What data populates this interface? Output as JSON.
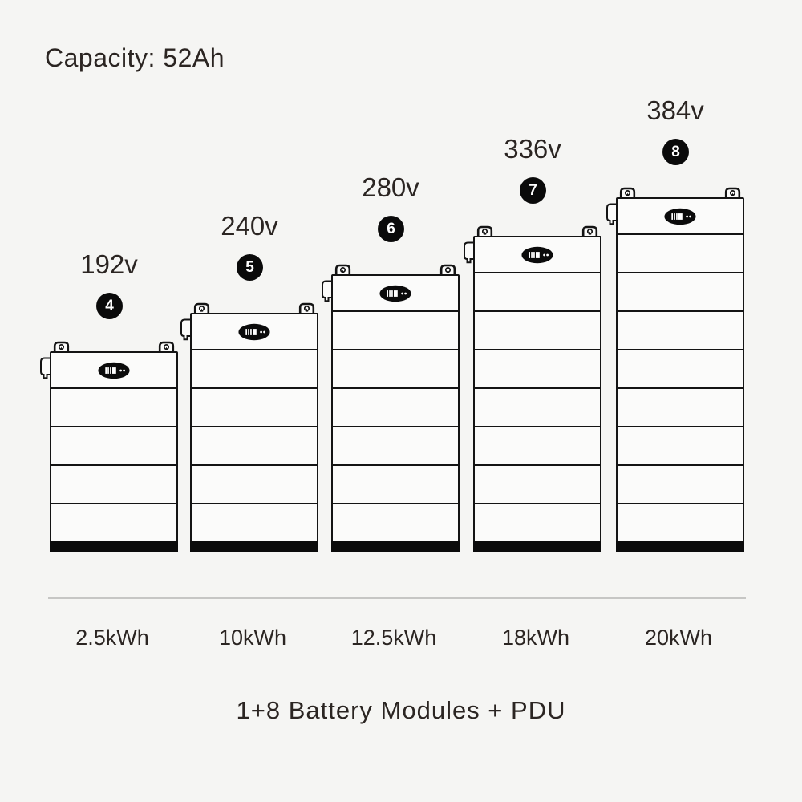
{
  "title": "Capacity: 52Ah",
  "footer": "1+8 Battery Modules + PDU",
  "stacks": [
    {
      "voltage": "192v",
      "badge": "4",
      "module_count": 4,
      "capacity": "2.5kWh"
    },
    {
      "voltage": "240v",
      "badge": "5",
      "module_count": 5,
      "capacity": "10kWh"
    },
    {
      "voltage": "280v",
      "badge": "6",
      "module_count": 6,
      "capacity": "12.5kWh"
    },
    {
      "voltage": "336v",
      "badge": "7",
      "module_count": 7,
      "capacity": "18kWh"
    },
    {
      "voltage": "384v",
      "badge": "8",
      "module_count": 8,
      "capacity": "20kWh"
    }
  ],
  "icons": {
    "latch": "latch-icon",
    "side_clip": "side-clip-icon",
    "status_display": "status-display-icon"
  },
  "colors": {
    "background": "#f5f5f3",
    "line": "#141414",
    "text": "#2b2522",
    "badge_bg": "#0a0a0a",
    "badge_text": "#ffffff",
    "panel_fill": "#fbfbfa",
    "base_fill": "#0b0b0b",
    "divider": "#c6c6c4"
  }
}
